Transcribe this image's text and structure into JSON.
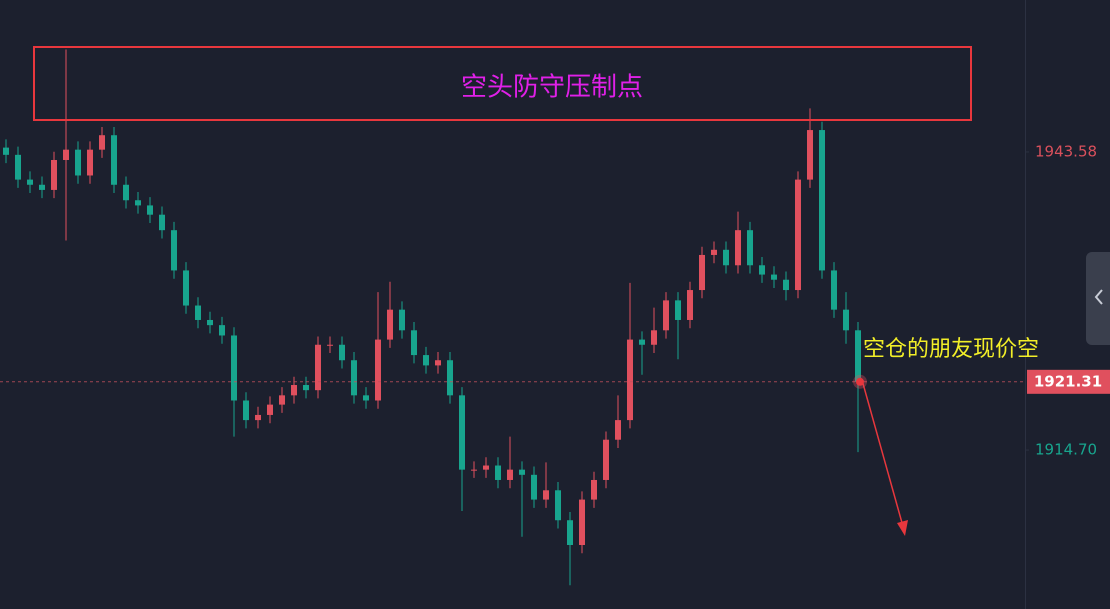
{
  "chart_data": {
    "type": "candlestick",
    "open": [
      1944.0,
      1943.3,
      1940.9,
      1940.4,
      1939.9,
      1942.8,
      1943.8,
      1941.3,
      1943.8,
      1945.2,
      1940.4,
      1938.9,
      1938.4,
      1937.5,
      1936.0,
      1932.1,
      1928.7,
      1927.3,
      1926.8,
      1925.8,
      1919.5,
      1917.6,
      1918.1,
      1919.1,
      1920.0,
      1921.0,
      1920.5,
      1924.9,
      1924.9,
      1923.4,
      1920.0,
      1919.5,
      1925.4,
      1928.3,
      1926.3,
      1923.9,
      1922.9,
      1923.4,
      1920.0,
      1912.8,
      1912.8,
      1913.2,
      1911.8,
      1912.8,
      1912.3,
      1909.9,
      1910.8,
      1907.9,
      1905.5,
      1909.9,
      1911.8,
      1915.7,
      1917.6,
      1925.4,
      1924.9,
      1926.3,
      1929.2,
      1927.3,
      1930.2,
      1933.6,
      1934.1,
      1932.6,
      1936.0,
      1932.6,
      1931.7,
      1931.2,
      1930.2,
      1940.9,
      1945.7,
      1932.1,
      1928.3,
      1926.3
    ],
    "high": [
      1944.8,
      1944.1,
      1941.7,
      1941.2,
      1943.6,
      1953.5,
      1944.6,
      1944.6,
      1946.0,
      1946.0,
      1941.2,
      1939.7,
      1939.2,
      1938.3,
      1936.8,
      1932.9,
      1929.5,
      1928.1,
      1927.6,
      1926.6,
      1920.3,
      1918.9,
      1919.9,
      1920.8,
      1921.8,
      1921.8,
      1925.7,
      1925.7,
      1925.7,
      1924.2,
      1920.8,
      1930.0,
      1931.0,
      1929.1,
      1927.1,
      1924.7,
      1924.2,
      1924.2,
      1920.8,
      1913.6,
      1914.0,
      1914.0,
      1916.0,
      1913.6,
      1913.1,
      1913.5,
      1911.6,
      1908.7,
      1910.7,
      1912.6,
      1916.5,
      1920.0,
      1930.9,
      1926.2,
      1928.5,
      1930.0,
      1930.0,
      1931.0,
      1934.4,
      1934.9,
      1934.9,
      1937.8,
      1936.8,
      1933.4,
      1932.5,
      1932.0,
      1941.7,
      1947.8,
      1946.5,
      1932.9,
      1930.0,
      1927.1
    ],
    "low": [
      1942.5,
      1940.1,
      1939.6,
      1939.1,
      1939.1,
      1935.0,
      1940.5,
      1940.5,
      1943.0,
      1939.6,
      1938.1,
      1937.6,
      1936.7,
      1935.2,
      1931.3,
      1927.9,
      1926.5,
      1926.0,
      1925.0,
      1916.0,
      1916.8,
      1916.8,
      1917.3,
      1918.3,
      1919.2,
      1919.7,
      1919.7,
      1924.1,
      1922.6,
      1919.2,
      1918.7,
      1918.7,
      1924.6,
      1925.5,
      1923.1,
      1922.1,
      1922.1,
      1919.2,
      1908.8,
      1912.0,
      1912.0,
      1911.0,
      1911.0,
      1906.3,
      1909.1,
      1909.1,
      1907.1,
      1901.6,
      1904.7,
      1909.1,
      1911.0,
      1914.9,
      1916.8,
      1922.0,
      1924.1,
      1925.5,
      1923.5,
      1926.5,
      1929.4,
      1932.8,
      1931.8,
      1931.8,
      1931.8,
      1930.9,
      1930.4,
      1929.2,
      1929.4,
      1940.1,
      1931.3,
      1927.5,
      1925.0,
      1914.5
    ],
    "close": [
      1943.3,
      1940.9,
      1940.4,
      1939.9,
      1942.8,
      1943.8,
      1941.3,
      1943.8,
      1945.2,
      1940.4,
      1938.9,
      1938.4,
      1937.5,
      1936.0,
      1932.1,
      1928.7,
      1927.3,
      1926.8,
      1925.8,
      1919.5,
      1917.6,
      1918.1,
      1919.1,
      1920.0,
      1921.0,
      1920.5,
      1924.9,
      1924.9,
      1923.4,
      1920.0,
      1919.5,
      1925.4,
      1928.3,
      1926.3,
      1923.9,
      1922.9,
      1923.4,
      1920.0,
      1912.8,
      1912.8,
      1913.2,
      1911.8,
      1912.8,
      1912.3,
      1909.9,
      1910.8,
      1907.9,
      1905.5,
      1909.9,
      1911.8,
      1915.7,
      1917.6,
      1925.4,
      1924.9,
      1926.3,
      1929.2,
      1927.3,
      1930.2,
      1933.6,
      1934.1,
      1932.6,
      1936.0,
      1932.6,
      1931.7,
      1931.2,
      1930.2,
      1940.9,
      1945.7,
      1932.1,
      1928.3,
      1926.3,
      1921.31
    ],
    "up_color": "#e0505e",
    "down_color": "#18a58e",
    "ylim": [
      1899.3,
      1958.3
    ],
    "yticks": [
      1943.58,
      {
        "value": 1914.7,
        "label": "1914.70"
      }
    ],
    "ytick_colors": [
      "#d9505c",
      "#18a58e"
    ],
    "current_price": 1921.31,
    "annotations": [
      "空头防守压制点",
      "空仓的朋友现价空"
    ]
  }
}
